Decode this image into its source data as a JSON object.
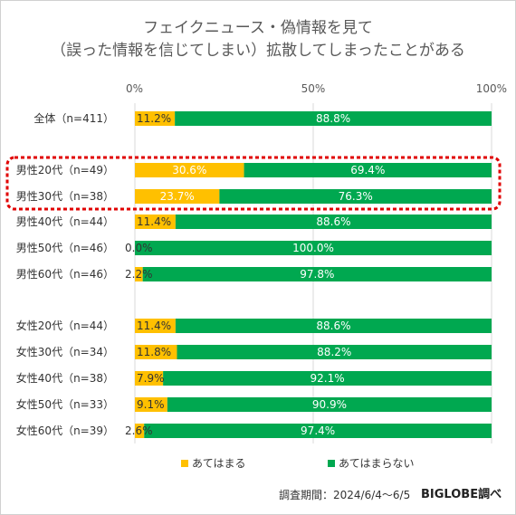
{
  "title_line1": "フェイクニュース・偽情報を見て",
  "title_line2": "（誤った情報を信じてしまい）拡散してしまったことがある",
  "legend": {
    "yes_label": "あてはまる",
    "no_label": "あてはまらない"
  },
  "footer": {
    "period": "調査期間：2024/6/4～6/5",
    "brand": "BIGLOBE調べ"
  },
  "colors": {
    "yes": "#FFC000",
    "no": "#00A850",
    "highlight": "#E00000"
  },
  "chart_data": {
    "type": "bar",
    "orientation": "horizontal-stacked-100",
    "x_ticks": [
      "0%",
      "50%",
      "100%"
    ],
    "xlim": [
      0,
      100
    ],
    "grid": true,
    "legend_position": "bottom",
    "categories": [
      "全体（n=411）",
      "男性20代（n=49）",
      "男性30代（n=38）",
      "男性40代（n=44）",
      "男性50代（n=46）",
      "男性60代（n=46）",
      "女性20代（n=44）",
      "女性30代（n=34）",
      "女性40代（n=38）",
      "女性50代（n=33）",
      "女性60代（n=39）"
    ],
    "series": [
      {
        "name": "あてはまる",
        "values": [
          11.2,
          30.6,
          23.7,
          11.4,
          0.0,
          2.2,
          11.4,
          11.8,
          7.9,
          9.1,
          2.6
        ],
        "labels": [
          "11.2%",
          "30.6%",
          "23.7%",
          "11.4%",
          "0.0%",
          "2.2%",
          "11.4%",
          "11.8%",
          "7.9%",
          "9.1%",
          "2.6%"
        ]
      },
      {
        "name": "あてはまらない",
        "values": [
          88.8,
          69.4,
          76.3,
          88.6,
          100.0,
          97.8,
          88.6,
          88.2,
          92.1,
          90.9,
          97.4
        ],
        "labels": [
          "88.8%",
          "69.4%",
          "76.3%",
          "88.6%",
          "100.0%",
          "97.8%",
          "88.6%",
          "88.2%",
          "92.1%",
          "90.9%",
          "97.4%"
        ]
      }
    ],
    "highlighted_categories": [
      "男性20代（n=49）",
      "男性30代（n=38）"
    ]
  }
}
